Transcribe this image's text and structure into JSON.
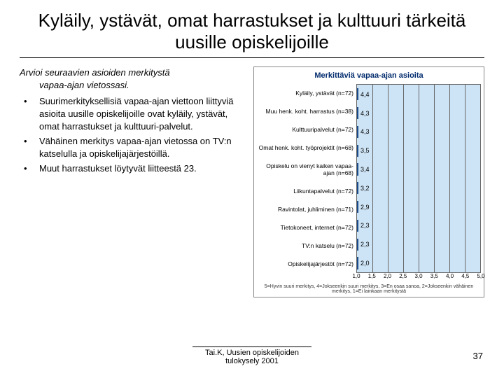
{
  "title": "Kyläily, ystävät, omat harrastukset ja kulttuuri tärkeitä uusille opiskelijoille",
  "prompt_line1": "Arvioi seuraavien asioiden merkitystä",
  "prompt_line2": "vapaa-ajan vietossasi.",
  "bullets": [
    "Suurimerkityksellisiä vapaa-ajan viettoon liittyviä asioita uusille opiskelijoille ovat kyläily, ystävät, omat harrastukset ja kulttuuri-palvelut.",
    "Vähäinen merkitys vapaa-ajan vietossa on TV:n katselulla ja opiskelijajärjestöillä.",
    "Muut harrastukset löytyvät liitteestä 23."
  ],
  "chart": {
    "title": "Merkittäviä vapaa-ajan asioita",
    "background_color": "#cde4f6",
    "bar_fill_top": "#a8cfee",
    "bar_fill_bottom": "#7fb5e3",
    "bar_border": "#1a4a8a",
    "grid_color": "#666666",
    "xmin": 1.0,
    "xmax": 5.0,
    "xticks": [
      1.0,
      1.5,
      2.0,
      2.5,
      3.0,
      3.5,
      4.0,
      4.5,
      5.0
    ],
    "categories": [
      {
        "label": "Kyläily, ystävät (n=72)",
        "value": 4.4
      },
      {
        "label": "Muu henk. koht. harrastus (n=38)",
        "value": 4.3
      },
      {
        "label": "Kulttuuripalvelut (n=72)",
        "value": 4.3
      },
      {
        "label": "Omat henk. koht. työprojektit (n=68)",
        "value": 3.5
      },
      {
        "label": "Opiskelu on vienyt kaiken vapaa-ajan (n=68)",
        "value": 3.4
      },
      {
        "label": "Liikuntapalvelut (n=72)",
        "value": 3.2
      },
      {
        "label": "Ravintolat, juhliminen (n=71)",
        "value": 2.9
      },
      {
        "label": "Tietokoneet, internet (n=72)",
        "value": 2.3
      },
      {
        "label": "TV:n katselu (n=72)",
        "value": 2.3
      },
      {
        "label": "Opiskelijajärjestöt (n=72)",
        "value": 2.0
      }
    ],
    "legend": "5=Hyvin suuri merkitys, 4=Jokseenkin suuri merkitys, 3=En osaa sanoa, 2=Jokseenkin vähäinen merkitys, 1=Ei lainkaan merkitystä"
  },
  "footer_line1": "Tai.K, Uusien opiskelijoiden",
  "footer_line2": "tulokysely 2001",
  "page_number": "37"
}
